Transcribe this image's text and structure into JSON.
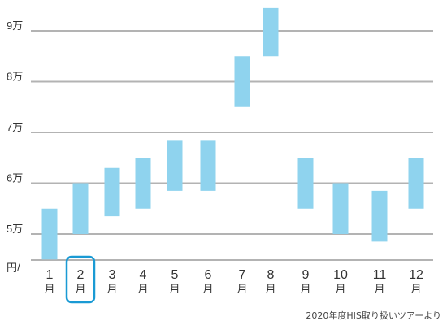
{
  "chart_data": {
    "type": "bar",
    "subtype": "floating-range",
    "unit_label": "円/",
    "y_ticks": [
      {
        "value": 50000,
        "label": "5万"
      },
      {
        "value": 60000,
        "label": "6万"
      },
      {
        "value": 70000,
        "label": "7万"
      },
      {
        "value": 80000,
        "label": "8万"
      },
      {
        "value": 90000,
        "label": "9万"
      }
    ],
    "ylim": [
      45000,
      94500
    ],
    "categories": [
      {
        "num": "1",
        "unit": "月"
      },
      {
        "num": "2",
        "unit": "月"
      },
      {
        "num": "3",
        "unit": "月"
      },
      {
        "num": "4",
        "unit": "月"
      },
      {
        "num": "5",
        "unit": "月"
      },
      {
        "num": "6",
        "unit": "月"
      },
      {
        "num": "7",
        "unit": "月"
      },
      {
        "num": "8",
        "unit": "月"
      },
      {
        "num": "9",
        "unit": "月"
      },
      {
        "num": "10",
        "unit": "月"
      },
      {
        "num": "11",
        "unit": "月"
      },
      {
        "num": "12",
        "unit": "月"
      }
    ],
    "ranges": [
      [
        45000,
        55000
      ],
      [
        50000,
        60000
      ],
      [
        53500,
        63000
      ],
      [
        55000,
        65000
      ],
      [
        58500,
        68500
      ],
      [
        58500,
        68500
      ],
      [
        75000,
        85000
      ],
      [
        85000,
        94500
      ],
      [
        55000,
        65000
      ],
      [
        50000,
        60000
      ],
      [
        48500,
        58500
      ],
      [
        55000,
        65000
      ]
    ],
    "highlighted_category_index": 1,
    "grid": true,
    "colors": {
      "bar": "#8fd3ee",
      "grid": "#b3b3b3",
      "highlight": "#1a9ad4"
    }
  },
  "footer": {
    "credit": "2020年度HIS取り扱いツアーより"
  }
}
